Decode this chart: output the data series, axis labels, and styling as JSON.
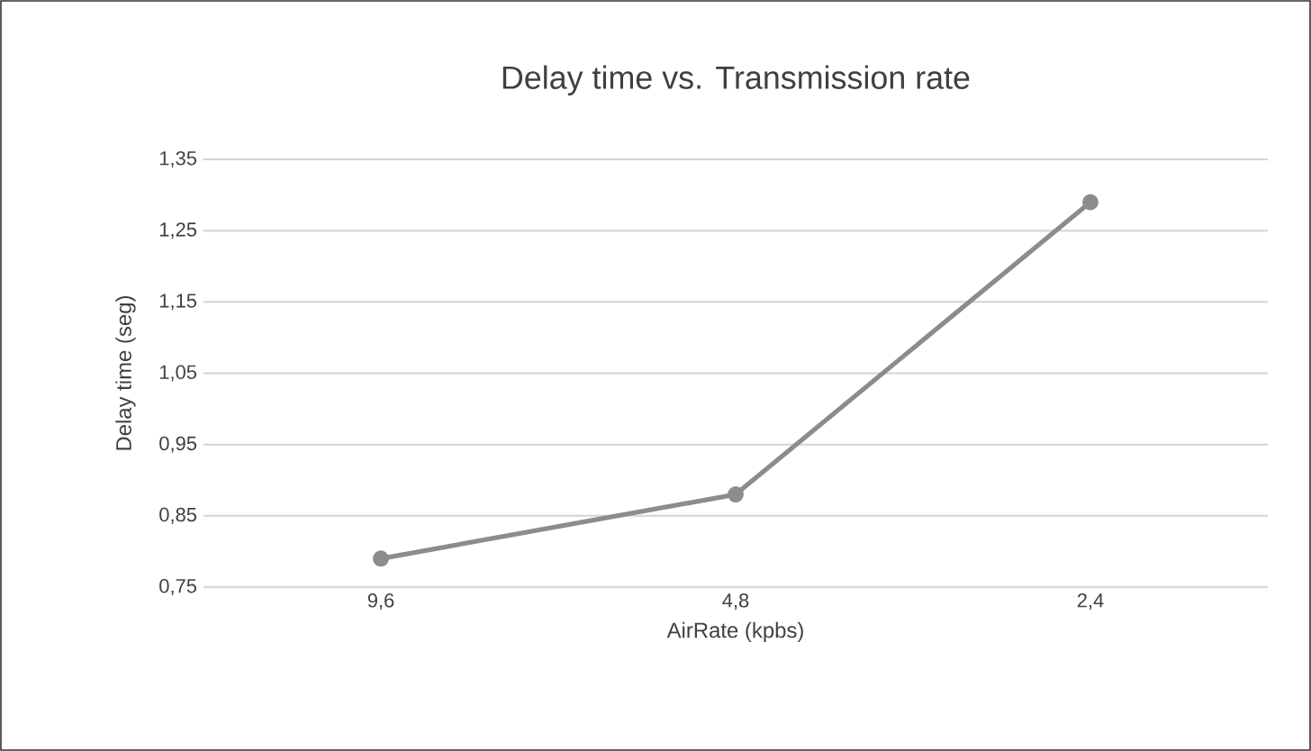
{
  "chart_data": {
    "type": "line",
    "title": "Delay time vs. Transmission rate",
    "xlabel": "AirRate (kpbs)",
    "ylabel": "Delay time (seg)",
    "categories": [
      "9,6",
      "4,8",
      "2,4"
    ],
    "series": [
      {
        "color": "#8c8c8c",
        "values": [
          0.79,
          0.88,
          1.29
        ]
      }
    ],
    "ylim": [
      0.75,
      1.35
    ],
    "yticks": [
      {
        "value": 0.75,
        "label": "0,75"
      },
      {
        "value": 0.85,
        "label": "0,85"
      },
      {
        "value": 0.95,
        "label": "0,95"
      },
      {
        "value": 1.05,
        "label": "1,05"
      },
      {
        "value": 1.15,
        "label": "1,15"
      },
      {
        "value": 1.25,
        "label": "1,25"
      },
      {
        "value": 1.35,
        "label": "1,35"
      }
    ],
    "grid": "y",
    "marker": "circle",
    "line_style": "solid"
  }
}
